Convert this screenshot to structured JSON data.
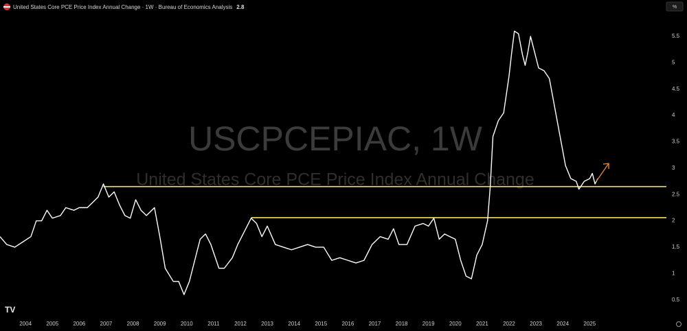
{
  "chart_data": {
    "type": "line",
    "title": "United States Core PCE Price Index Annual Change · 1W · Bureau of Economics Analysis",
    "last_value": 2.8,
    "watermark": "USCPCEPIAC, 1W",
    "watermark_subtitle": "United States Core PCE Price Index Annual Change",
    "unit": "%",
    "color": "#ffffff",
    "x": [
      2003.05,
      2003.3,
      2003.6,
      2003.9,
      2004.2,
      2004.4,
      2004.6,
      2004.8,
      2005.0,
      2005.3,
      2005.5,
      2005.8,
      2006.0,
      2006.3,
      2006.5,
      2006.7,
      2006.9,
      2007.1,
      2007.3,
      2007.5,
      2007.7,
      2007.9,
      2008.1,
      2008.3,
      2008.5,
      2008.8,
      2009.0,
      2009.2,
      2009.5,
      2009.7,
      2009.9,
      2010.1,
      2010.3,
      2010.5,
      2010.7,
      2010.9,
      2011.2,
      2011.4,
      2011.7,
      2011.9,
      2012.2,
      2012.4,
      2012.6,
      2012.8,
      2013.0,
      2013.3,
      2013.6,
      2013.9,
      2014.2,
      2014.5,
      2014.8,
      2015.1,
      2015.4,
      2015.7,
      2016.0,
      2016.3,
      2016.6,
      2016.9,
      2017.2,
      2017.5,
      2017.7,
      2017.9,
      2018.2,
      2018.5,
      2018.8,
      2019.0,
      2019.2,
      2019.4,
      2019.6,
      2019.8,
      2020.0,
      2020.2,
      2020.4,
      2020.6,
      2020.8,
      2021.0,
      2021.2,
      2021.3,
      2021.4,
      2021.6,
      2021.8,
      2022.0,
      2022.1,
      2022.2,
      2022.35,
      2022.5,
      2022.6,
      2022.7,
      2022.8,
      2022.95,
      2023.1,
      2023.3,
      2023.5,
      2023.7,
      2023.9,
      2024.1,
      2024.3,
      2024.5,
      2024.6,
      2024.8,
      2025.0,
      2025.1,
      2025.2,
      2025.3
    ],
    "values": [
      1.7,
      1.55,
      1.5,
      1.6,
      1.7,
      2.0,
      2.0,
      2.2,
      2.05,
      2.1,
      2.25,
      2.2,
      2.25,
      2.25,
      2.35,
      2.45,
      2.7,
      2.45,
      2.55,
      2.3,
      2.1,
      2.05,
      2.4,
      2.2,
      2.1,
      2.25,
      1.7,
      1.1,
      0.85,
      0.85,
      0.6,
      0.85,
      1.25,
      1.65,
      1.75,
      1.55,
      1.1,
      1.1,
      1.3,
      1.55,
      1.85,
      2.05,
      1.95,
      1.7,
      1.9,
      1.55,
      1.5,
      1.45,
      1.5,
      1.55,
      1.5,
      1.5,
      1.25,
      1.3,
      1.25,
      1.2,
      1.25,
      1.55,
      1.7,
      1.65,
      1.85,
      1.55,
      1.55,
      1.9,
      1.95,
      1.9,
      2.05,
      1.65,
      1.75,
      1.7,
      1.65,
      1.25,
      0.95,
      0.9,
      1.35,
      1.55,
      2.0,
      2.65,
      3.6,
      3.9,
      4.05,
      4.75,
      5.2,
      5.6,
      5.55,
      5.15,
      4.95,
      5.2,
      5.5,
      5.2,
      4.9,
      4.85,
      4.7,
      4.15,
      3.6,
      3.05,
      2.8,
      2.75,
      2.6,
      2.75,
      2.8,
      2.9,
      2.7,
      2.8
    ],
    "xlim": [
      2003.05,
      2027.55
    ],
    "xticks": [
      2004,
      2005,
      2006,
      2007,
      2008,
      2009,
      2010,
      2011,
      2012,
      2013,
      2014,
      2015,
      2016,
      2017,
      2018,
      2019,
      2020,
      2021,
      2022,
      2023,
      2024,
      2025
    ],
    "ylim": [
      0.17,
      6.19
    ],
    "yticks": [
      0.5,
      1,
      1.5,
      2,
      2.5,
      3,
      3.5,
      4,
      4.5,
      5,
      5.5
    ],
    "levels": [
      {
        "value": 2.65,
        "from": 2006.9,
        "color": "#f2e35c"
      },
      {
        "value": 2.06,
        "from": 2012.4,
        "color": "#f2e35c"
      }
    ],
    "grid": false
  }
}
